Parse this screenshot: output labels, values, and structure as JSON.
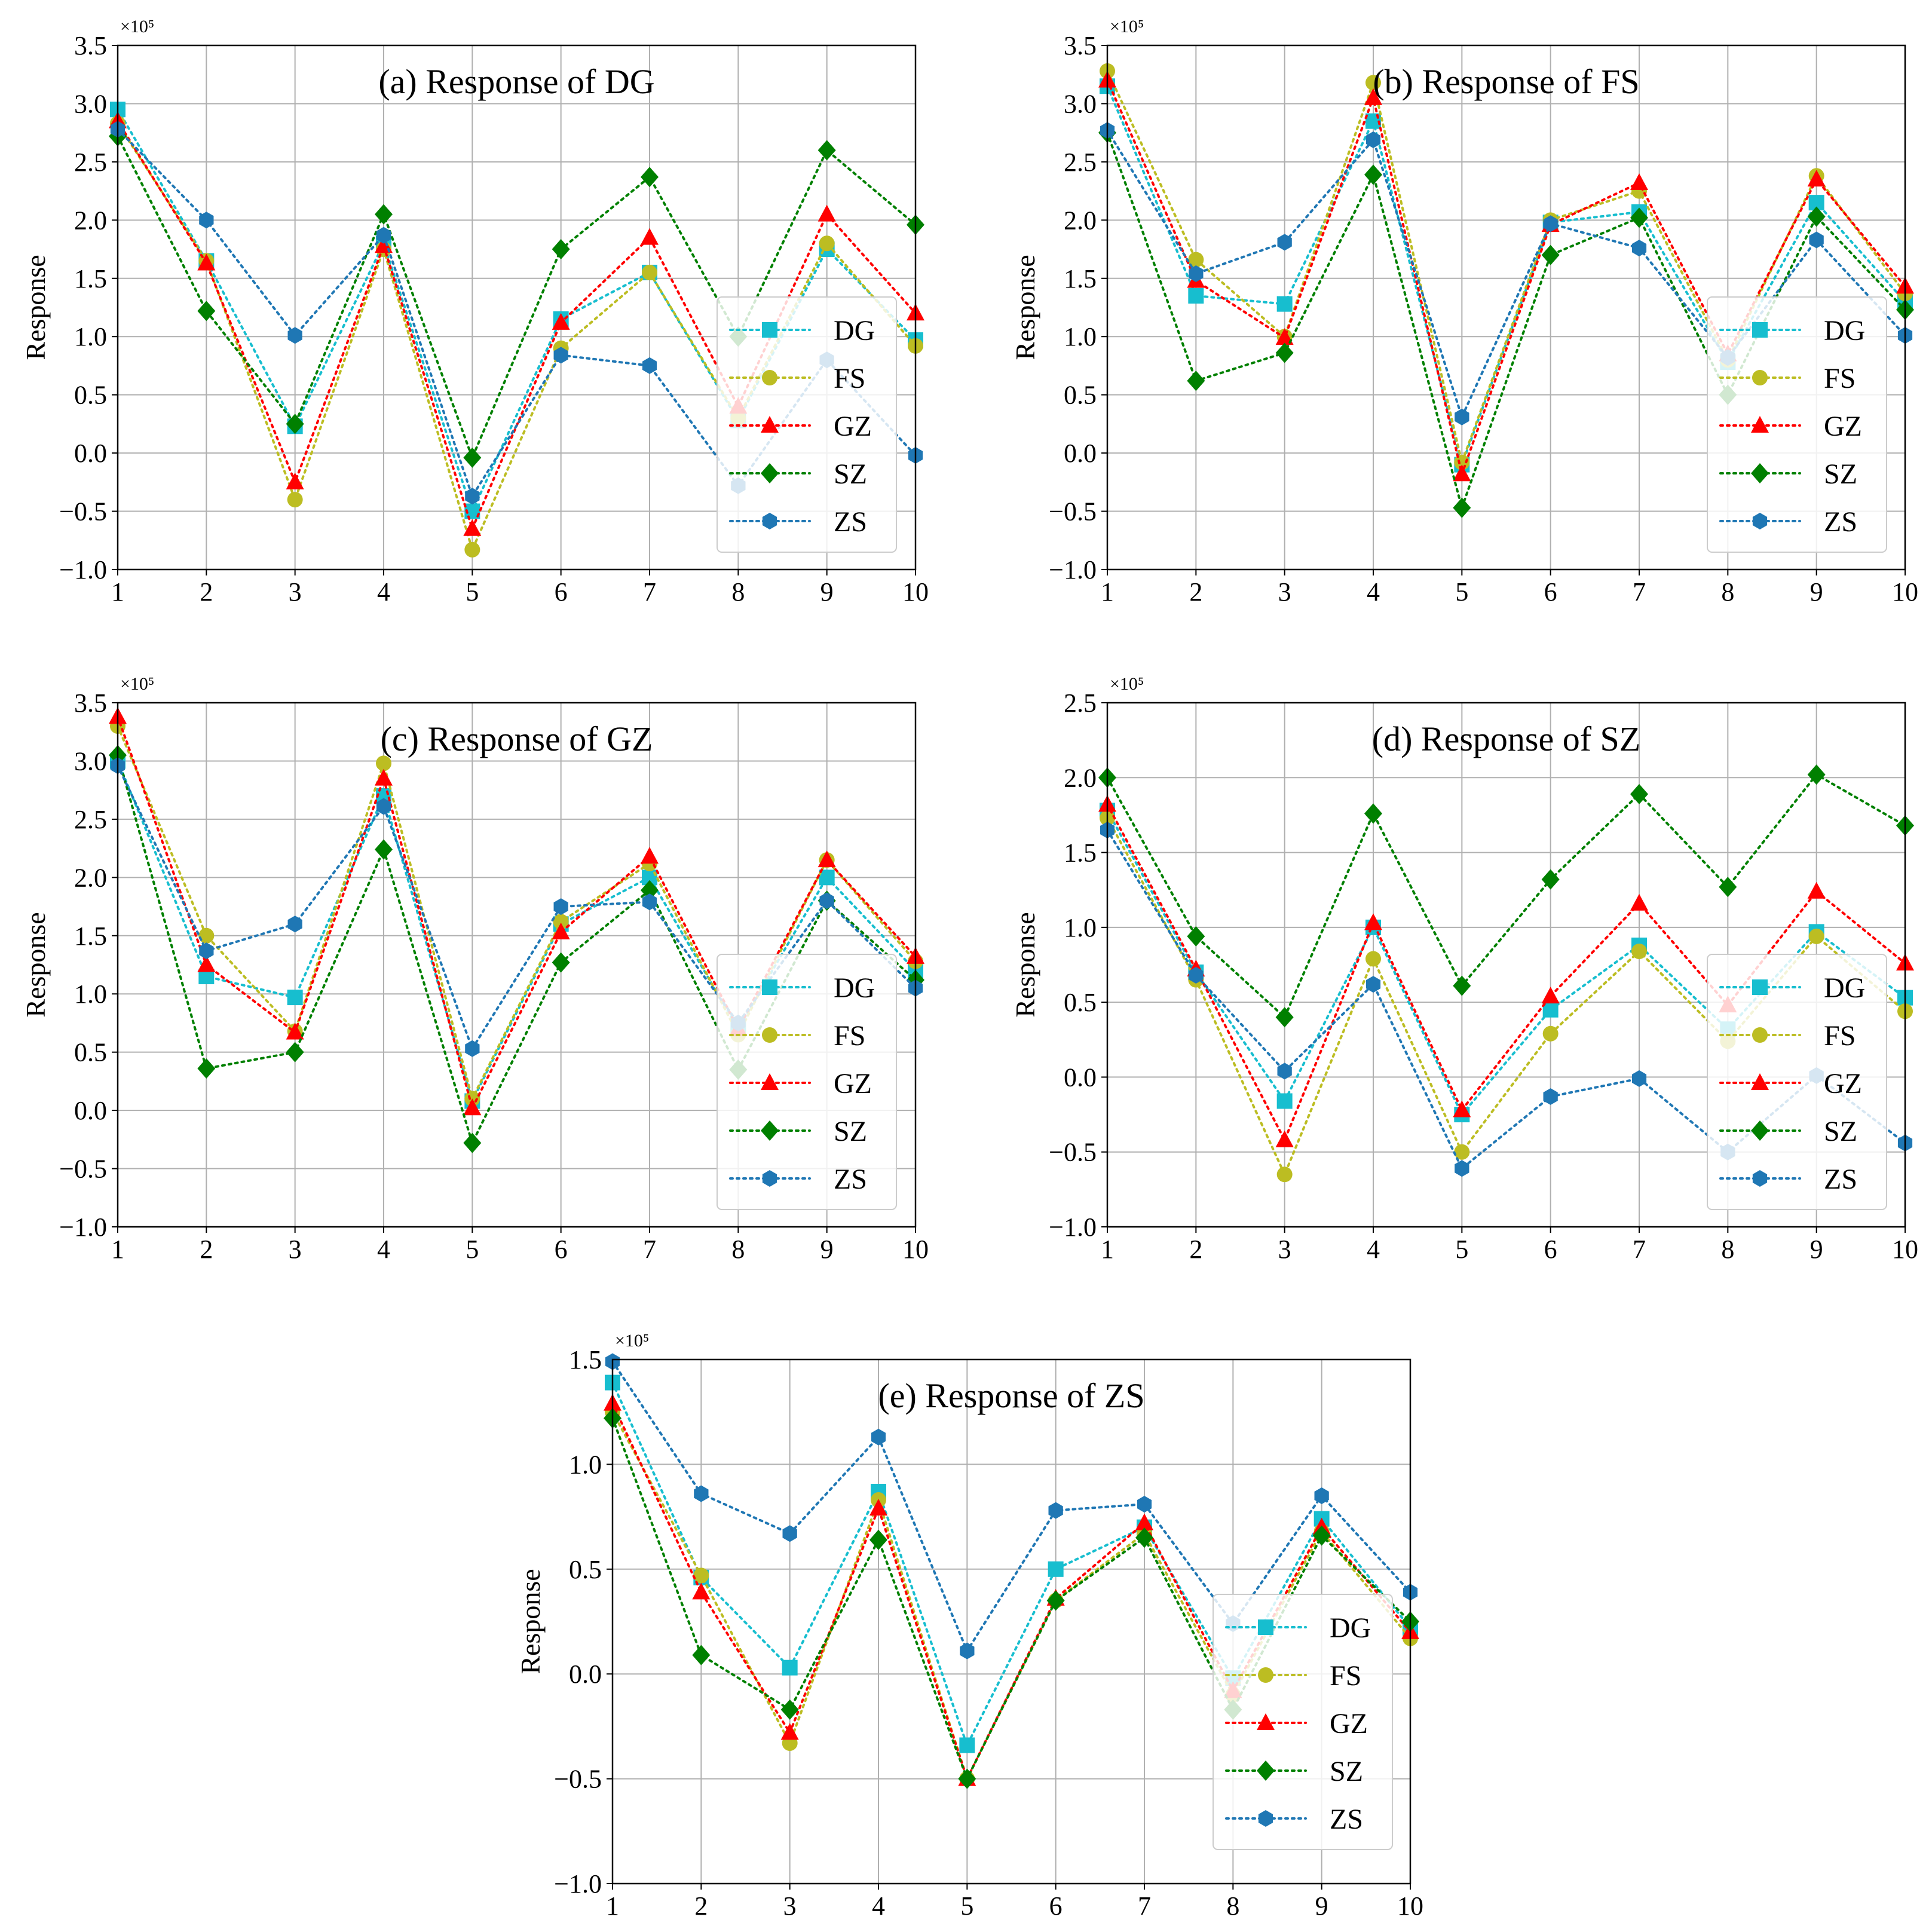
{
  "colors": {
    "DG": "#17becf",
    "FS": "#bcbd22",
    "GZ": "#ff0000",
    "SZ": "#008000",
    "ZS": "#1f77b4"
  },
  "legend": {
    "entries": [
      {
        "name": "DG",
        "marker": "square"
      },
      {
        "name": "FS",
        "marker": "circle"
      },
      {
        "name": "GZ",
        "marker": "triangle"
      },
      {
        "name": "SZ",
        "marker": "diamond"
      },
      {
        "name": "ZS",
        "marker": "hexagon"
      }
    ],
    "placement": "center-right"
  },
  "chart_data": [
    {
      "type": "line",
      "title": "(a) Response of DG",
      "ylabel": "Response",
      "exponent_label": "×10⁵",
      "x": [
        1,
        2,
        3,
        4,
        5,
        6,
        7,
        8,
        9,
        10
      ],
      "xlim": [
        1,
        10
      ],
      "ylim": [
        -1.0,
        3.5
      ],
      "yticks": [
        "−1.0",
        "−0.5",
        "0.0",
        "0.5",
        "1.0",
        "1.5",
        "2.0",
        "2.5",
        "3.0",
        "3.5"
      ],
      "xticks": [
        "1",
        "2",
        "3",
        "4",
        "5",
        "6",
        "7",
        "8",
        "9",
        "10"
      ],
      "grid": true,
      "series": [
        {
          "name": "DG",
          "values": [
            2.95,
            1.65,
            0.23,
            1.8,
            -0.5,
            1.15,
            1.55,
            0.28,
            1.75,
            0.97
          ]
        },
        {
          "name": "FS",
          "values": [
            2.83,
            1.65,
            -0.4,
            1.75,
            -0.83,
            0.9,
            1.55,
            0.3,
            1.8,
            0.92
          ]
        },
        {
          "name": "GZ",
          "values": [
            2.85,
            1.63,
            -0.25,
            1.78,
            -0.65,
            1.12,
            1.85,
            0.4,
            2.05,
            1.2
          ]
        },
        {
          "name": "SZ",
          "values": [
            2.72,
            1.22,
            0.25,
            2.05,
            -0.04,
            1.75,
            2.37,
            1.0,
            2.6,
            1.96
          ]
        },
        {
          "name": "ZS",
          "values": [
            2.78,
            2.0,
            1.01,
            1.87,
            -0.37,
            0.84,
            0.75,
            -0.28,
            0.8,
            -0.02
          ]
        }
      ]
    },
    {
      "type": "line",
      "title": "(b) Response of FS",
      "ylabel": "Response",
      "exponent_label": "×10⁵",
      "x": [
        1,
        2,
        3,
        4,
        5,
        6,
        7,
        8,
        9,
        10
      ],
      "xlim": [
        1,
        10
      ],
      "ylim": [
        -1.0,
        3.5
      ],
      "yticks": [
        "−1.0",
        "−0.5",
        "0.0",
        "0.5",
        "1.0",
        "1.5",
        "2.0",
        "2.5",
        "3.0",
        "3.5"
      ],
      "xticks": [
        "1",
        "2",
        "3",
        "4",
        "5",
        "6",
        "7",
        "8",
        "9",
        "10"
      ],
      "grid": true,
      "series": [
        {
          "name": "DG",
          "values": [
            3.15,
            1.35,
            1.28,
            2.85,
            -0.1,
            1.98,
            2.07,
            0.78,
            2.15,
            1.3
          ]
        },
        {
          "name": "FS",
          "values": [
            3.28,
            1.66,
            1.0,
            3.18,
            -0.08,
            2.0,
            2.25,
            0.8,
            2.38,
            1.37
          ]
        },
        {
          "name": "GZ",
          "values": [
            3.2,
            1.48,
            0.99,
            3.05,
            -0.18,
            1.96,
            2.32,
            0.85,
            2.35,
            1.43
          ]
        },
        {
          "name": "SZ",
          "values": [
            2.75,
            0.62,
            0.86,
            2.39,
            -0.47,
            1.7,
            2.02,
            0.5,
            2.03,
            1.23
          ]
        },
        {
          "name": "ZS",
          "values": [
            2.77,
            1.54,
            1.81,
            2.69,
            0.31,
            1.97,
            1.76,
            0.82,
            1.83,
            1.01
          ]
        }
      ]
    },
    {
      "type": "line",
      "title": "(c) Response of GZ",
      "ylabel": "Response",
      "exponent_label": "×10⁵",
      "x": [
        1,
        2,
        3,
        4,
        5,
        6,
        7,
        8,
        9,
        10
      ],
      "xlim": [
        1,
        10
      ],
      "ylim": [
        -1.0,
        3.5
      ],
      "yticks": [
        "−1.0",
        "−0.5",
        "0.0",
        "0.5",
        "1.0",
        "1.5",
        "2.0",
        "2.5",
        "3.0",
        "3.5"
      ],
      "xticks": [
        "1",
        "2",
        "3",
        "4",
        "5",
        "6",
        "7",
        "8",
        "9",
        "10"
      ],
      "grid": true,
      "series": [
        {
          "name": "DG",
          "values": [
            3.0,
            1.15,
            0.97,
            2.7,
            0.08,
            1.6,
            2.0,
            0.7,
            2.0,
            1.2
          ]
        },
        {
          "name": "FS",
          "values": [
            3.3,
            1.5,
            0.68,
            2.98,
            0.1,
            1.62,
            2.12,
            0.65,
            2.15,
            1.28
          ]
        },
        {
          "name": "GZ",
          "values": [
            3.38,
            1.25,
            0.67,
            2.85,
            0.02,
            1.53,
            2.18,
            0.7,
            2.15,
            1.32
          ]
        },
        {
          "name": "SZ",
          "values": [
            3.05,
            0.36,
            0.5,
            2.24,
            -0.28,
            1.27,
            1.89,
            0.35,
            1.8,
            1.12
          ]
        },
        {
          "name": "ZS",
          "values": [
            2.96,
            1.37,
            1.6,
            2.61,
            0.53,
            1.75,
            1.79,
            0.75,
            1.8,
            1.05
          ]
        }
      ]
    },
    {
      "type": "line",
      "title": "(d) Response of SZ",
      "ylabel": "Response",
      "exponent_label": "×10⁵",
      "x": [
        1,
        2,
        3,
        4,
        5,
        6,
        7,
        8,
        9,
        10
      ],
      "xlim": [
        1,
        10
      ],
      "ylim": [
        -1.0,
        2.5
      ],
      "yticks": [
        "−1.0",
        "−0.5",
        "0.0",
        "0.5",
        "1.0",
        "1.5",
        "2.0",
        "2.5"
      ],
      "xticks": [
        "1",
        "2",
        "3",
        "4",
        "5",
        "6",
        "7",
        "8",
        "9",
        "10"
      ],
      "grid": true,
      "series": [
        {
          "name": "DG",
          "values": [
            1.78,
            0.7,
            -0.16,
            1.0,
            -0.25,
            0.45,
            0.88,
            0.32,
            0.97,
            0.53
          ]
        },
        {
          "name": "FS",
          "values": [
            1.73,
            0.65,
            -0.65,
            0.79,
            -0.5,
            0.29,
            0.84,
            0.24,
            0.94,
            0.44
          ]
        },
        {
          "name": "GZ",
          "values": [
            1.82,
            0.72,
            -0.42,
            1.03,
            -0.22,
            0.54,
            1.16,
            0.48,
            1.24,
            0.76
          ]
        },
        {
          "name": "SZ",
          "values": [
            2.0,
            0.94,
            0.4,
            1.76,
            0.61,
            1.32,
            1.89,
            1.27,
            2.02,
            1.68
          ]
        },
        {
          "name": "ZS",
          "values": [
            1.65,
            0.68,
            0.04,
            0.62,
            -0.61,
            -0.13,
            -0.01,
            -0.5,
            0.01,
            -0.44
          ]
        }
      ]
    },
    {
      "type": "line",
      "title": "(e) Response of ZS",
      "ylabel": "Response",
      "exponent_label": "×10⁵",
      "x": [
        1,
        2,
        3,
        4,
        5,
        6,
        7,
        8,
        9,
        10
      ],
      "xlim": [
        1,
        10
      ],
      "ylim": [
        -1.0,
        1.5
      ],
      "yticks": [
        "−1.0",
        "−0.5",
        "0.0",
        "0.5",
        "1.0",
        "1.5"
      ],
      "xticks": [
        "1",
        "2",
        "3",
        "4",
        "5",
        "6",
        "7",
        "8",
        "9",
        "10"
      ],
      "grid": true,
      "series": [
        {
          "name": "DG",
          "values": [
            1.39,
            0.46,
            0.03,
            0.87,
            -0.34,
            0.5,
            0.7,
            -0.02,
            0.74,
            0.22
          ]
        },
        {
          "name": "FS",
          "values": [
            1.25,
            0.47,
            -0.33,
            0.83,
            -0.5,
            0.35,
            0.67,
            -0.1,
            0.68,
            0.17
          ]
        },
        {
          "name": "GZ",
          "values": [
            1.29,
            0.39,
            -0.28,
            0.79,
            -0.5,
            0.36,
            0.72,
            -0.08,
            0.7,
            0.2
          ]
        },
        {
          "name": "SZ",
          "values": [
            1.22,
            0.09,
            -0.17,
            0.64,
            -0.5,
            0.35,
            0.65,
            -0.17,
            0.66,
            0.25
          ]
        },
        {
          "name": "ZS",
          "values": [
            1.49,
            0.86,
            0.67,
            1.13,
            0.11,
            0.78,
            0.81,
            0.24,
            0.85,
            0.39
          ]
        }
      ]
    }
  ]
}
